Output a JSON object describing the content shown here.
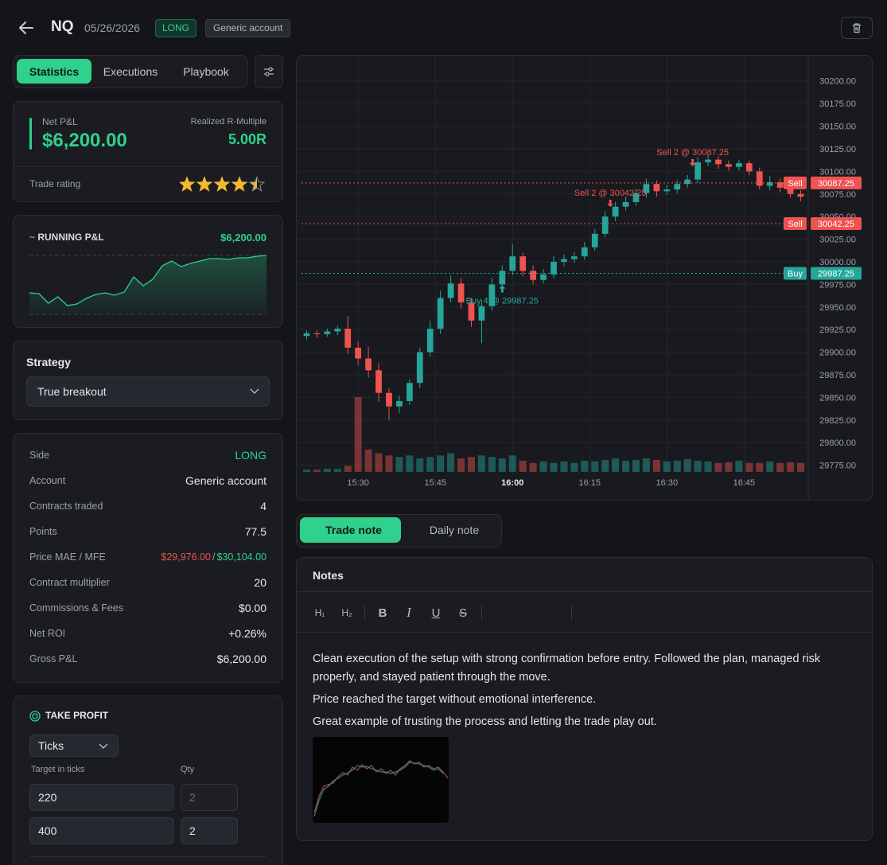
{
  "header": {
    "symbol": "NQ",
    "date": "05/26/2026",
    "side": "LONG",
    "account": "Generic account"
  },
  "tabs": [
    "Statistics",
    "Executions",
    "Playbook"
  ],
  "pnl": {
    "label": "Net P&L",
    "value": "$6,200.00",
    "r_label": "Realized R-Multiple",
    "r_value": "5.00R",
    "rating_label": "Trade rating",
    "rating": 4.5,
    "rating_max": 5
  },
  "strategy": {
    "label": "Strategy",
    "value": "True breakout"
  },
  "stats": {
    "rows": [
      {
        "label": "Side",
        "value": "LONG"
      },
      {
        "label": "Account",
        "value": "Generic account"
      },
      {
        "label": "Contracts traded",
        "value": "4"
      },
      {
        "label": "Points",
        "value": "77.5"
      },
      {
        "label": "Price MAE / MFE",
        "mae": "$29,976.00",
        "separator": "/",
        "mfe": "$30,104.00"
      },
      {
        "label": "Contract multiplier",
        "value": "20"
      },
      {
        "label": "Commissions & Fees",
        "value": "$0.00"
      },
      {
        "label": "Net ROI",
        "value": "+0.26%"
      },
      {
        "label": "Gross P&L",
        "value": "$6,200.00"
      }
    ]
  },
  "take_profit": {
    "title": "TAKE PROFIT",
    "mode": "Ticks",
    "target_label": "Target in ticks",
    "qty_label": "Qty",
    "rows": [
      [
        "220",
        "2"
      ],
      [
        "400",
        "2"
      ]
    ]
  },
  "note_tabs": [
    "Trade note",
    "Daily note"
  ],
  "notes": {
    "title": "Notes",
    "toolbar": [
      "H₁",
      "H₂",
      "B",
      "I",
      "U",
      "S"
    ],
    "paragraphs": [
      "Clean execution of the setup with strong confirmation before entry. Followed the plan, managed risk properly, and stayed patient through the move.",
      "Price reached the target without emotional interference.",
      "Great example of trusting the process and letting the trade play out."
    ]
  },
  "chart_data": [
    {
      "type": "candlestick",
      "up_color": "#26a69a",
      "down_color": "#ef5350",
      "grid": true,
      "x": [
        920,
        922,
        924,
        926,
        928,
        930,
        932,
        934,
        936,
        938,
        940,
        942,
        944,
        946,
        948,
        950,
        952,
        954,
        956,
        958,
        960,
        962,
        964,
        966,
        968,
        970,
        972,
        974,
        976,
        978,
        980,
        982,
        984,
        986,
        988,
        990,
        992,
        994,
        996,
        998,
        1000,
        1002,
        1004,
        1006,
        1008,
        1010,
        1012,
        1014,
        1016
      ],
      "open": [
        29918,
        29921,
        29920,
        29923,
        29926,
        29905,
        29893,
        29880,
        29855,
        29840,
        29846,
        29866,
        29900,
        29926,
        29960,
        29976,
        29955,
        29935,
        29951,
        29975,
        29990,
        30006,
        29990,
        29980,
        29986,
        30000,
        30003,
        30006,
        30016,
        30031,
        30050,
        30061,
        30066,
        30076,
        30086,
        30078,
        30080,
        30086,
        30091,
        30110,
        30113,
        30108,
        30105,
        30109,
        30100,
        30084,
        30088,
        30082,
        30075
      ],
      "high": [
        29924,
        29924,
        29926,
        29929,
        29940,
        29912,
        29906,
        29888,
        29860,
        29852,
        29870,
        29905,
        29935,
        29968,
        29985,
        29982,
        29960,
        29958,
        29982,
        29996,
        30020,
        30010,
        29996,
        29992,
        30006,
        30008,
        30011,
        30022,
        30036,
        30056,
        30066,
        30072,
        30081,
        30092,
        30090,
        30085,
        30090,
        30096,
        30116,
        30118,
        30117,
        30112,
        30113,
        30112,
        30104,
        30095,
        30092,
        30086,
        30079
      ],
      "low": [
        29914,
        29916,
        29917,
        29919,
        29898,
        29886,
        29872,
        29845,
        29825,
        29833,
        29842,
        29860,
        29895,
        29920,
        29955,
        29948,
        29928,
        29910,
        29946,
        29970,
        29985,
        29984,
        29975,
        29976,
        29982,
        29995,
        29999,
        30002,
        30012,
        30027,
        30045,
        30057,
        30062,
        30071,
        30072,
        30074,
        30076,
        30082,
        30087,
        30106,
        30103,
        30101,
        30101,
        30096,
        30080,
        30079,
        30077,
        30071,
        30067
      ],
      "close": [
        29921,
        29920,
        29923,
        29926,
        29905,
        29893,
        29880,
        29855,
        29840,
        29846,
        29866,
        29900,
        29926,
        29960,
        29976,
        29955,
        29935,
        29951,
        29975,
        29990,
        30006,
        29990,
        29980,
        29986,
        30000,
        30003,
        30006,
        30016,
        30031,
        30050,
        30061,
        30066,
        30076,
        30086,
        30078,
        30080,
        30086,
        30091,
        30110,
        30113,
        30108,
        30105,
        30109,
        30100,
        30084,
        30088,
        30082,
        30075,
        30072
      ],
      "volume": [
        3,
        3,
        4,
        4,
        8,
        100,
        30,
        25,
        22,
        20,
        22,
        18,
        20,
        22,
        25,
        18,
        20,
        22,
        20,
        18,
        22,
        15,
        12,
        14,
        12,
        14,
        12,
        15,
        14,
        16,
        18,
        15,
        16,
        18,
        16,
        14,
        15,
        17,
        15,
        14,
        12,
        13,
        15,
        12,
        12,
        14,
        12,
        13,
        12
      ],
      "xlim": [
        919,
        1017
      ],
      "xticks": [
        {
          "value": 930,
          "label": "15:30"
        },
        {
          "value": 945,
          "label": "15:45"
        },
        {
          "value": 960,
          "label": "16:00"
        },
        {
          "value": 975,
          "label": "16:15"
        },
        {
          "value": 990,
          "label": "16:30"
        },
        {
          "value": 1005,
          "label": "16:45"
        }
      ],
      "ylim": [
        29765,
        30220
      ],
      "yticks": [
        {
          "value": 30200,
          "label": "30200.00"
        },
        {
          "value": 30175,
          "label": "30175.00"
        },
        {
          "value": 30150,
          "label": "30150.00"
        },
        {
          "value": 30125,
          "label": "30125.00"
        },
        {
          "value": 30100,
          "label": "30100.00"
        },
        {
          "value": 30075,
          "label": "30075.00"
        },
        {
          "value": 30050,
          "label": "30050.00"
        },
        {
          "value": 30025,
          "label": "30025.00"
        },
        {
          "value": 30000,
          "label": "30000.00"
        },
        {
          "value": 29975,
          "label": "29975.00"
        },
        {
          "value": 29950,
          "label": "29950.00"
        },
        {
          "value": 29925,
          "label": "29925.00"
        },
        {
          "value": 29900,
          "label": "29900.00"
        },
        {
          "value": 29875,
          "label": "29875.00"
        },
        {
          "value": 29850,
          "label": "29850.00"
        },
        {
          "value": 29825,
          "label": "29825.00"
        },
        {
          "value": 29800,
          "label": "29800.00"
        },
        {
          "value": 29775,
          "label": "29775.00"
        }
      ],
      "levels": [
        {
          "name": "Sell",
          "value": 30087.25,
          "color": "#ef5350"
        },
        {
          "name": "Sell",
          "value": 30042.25,
          "color": "#ef5350"
        },
        {
          "name": "Buy",
          "value": 29987.25,
          "color": "#26a69a"
        }
      ],
      "annotations": [
        {
          "text": "Sell 2 @ 30087.25",
          "x": 995,
          "value": 30087.25,
          "side": "sell"
        },
        {
          "text": "Sell 2 @ 30042.25",
          "x": 979,
          "value": 30042.25,
          "side": "sell"
        },
        {
          "text": "Buy 4 @ 29987.25",
          "x": 958,
          "value": 29987.25,
          "side": "buy"
        }
      ]
    },
    {
      "type": "area",
      "title": "RUNNING P&L",
      "value_label": "$6,200.00",
      "color": "#2fd18c",
      "ylim": [
        -2500,
        6200
      ],
      "values": [
        674,
        557,
        -854,
        86,
        -1207,
        -972,
        -149,
        439,
        674,
        322,
        792,
        3026,
        1732,
        2673,
        4672,
        5377,
        4554,
        5024,
        5377,
        5730,
        5730,
        5612,
        5847,
        5847,
        6082,
        6200
      ]
    }
  ]
}
